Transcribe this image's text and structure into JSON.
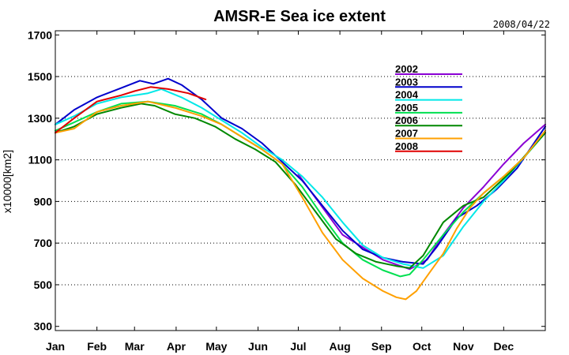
{
  "chart_data": {
    "type": "line",
    "title": "AMSR-E Sea ice extent",
    "date": "2008/04/22",
    "xlabel": "",
    "ylabel": "x10000[km2]",
    "x_categories": [
      "Jan",
      "Feb",
      "Mar",
      "Apr",
      "May",
      "Jun",
      "Jul",
      "Aug",
      "Sep",
      "Oct",
      "Nov",
      "Dec"
    ],
    "x_range_days": [
      1,
      366
    ],
    "ylim": [
      280,
      1720
    ],
    "yticks": [
      300,
      500,
      700,
      900,
      1100,
      1300,
      1500,
      1700
    ],
    "grid": "horizontal dotted",
    "legend_position": "top-right",
    "series": [
      {
        "name": "2002",
        "color": "#8a00d4",
        "points": [
          [
            182,
            1030
          ],
          [
            215,
            740
          ],
          [
            245,
            620
          ],
          [
            265,
            575
          ],
          [
            278,
            620
          ],
          [
            290,
            740
          ],
          [
            305,
            870
          ],
          [
            320,
            970
          ],
          [
            335,
            1080
          ],
          [
            350,
            1180
          ],
          [
            366,
            1270
          ]
        ]
      },
      {
        "name": "2003",
        "color": "#0000cc",
        "points": [
          [
            1,
            1270
          ],
          [
            15,
            1340
          ],
          [
            32,
            1400
          ],
          [
            48,
            1440
          ],
          [
            64,
            1480
          ],
          [
            74,
            1465
          ],
          [
            85,
            1490
          ],
          [
            95,
            1460
          ],
          [
            110,
            1390
          ],
          [
            125,
            1300
          ],
          [
            140,
            1250
          ],
          [
            155,
            1180
          ],
          [
            170,
            1090
          ],
          [
            185,
            1000
          ],
          [
            200,
            880
          ],
          [
            215,
            760
          ],
          [
            230,
            670
          ],
          [
            245,
            630
          ],
          [
            260,
            610
          ],
          [
            275,
            600
          ],
          [
            285,
            680
          ],
          [
            300,
            820
          ],
          [
            315,
            880
          ],
          [
            330,
            960
          ],
          [
            345,
            1060
          ],
          [
            366,
            1260
          ]
        ]
      },
      {
        "name": "2004",
        "color": "#00e8e8",
        "points": [
          [
            1,
            1270
          ],
          [
            15,
            1310
          ],
          [
            32,
            1370
          ],
          [
            50,
            1400
          ],
          [
            70,
            1420
          ],
          [
            80,
            1440
          ],
          [
            95,
            1400
          ],
          [
            110,
            1350
          ],
          [
            125,
            1290
          ],
          [
            140,
            1230
          ],
          [
            155,
            1160
          ],
          [
            170,
            1100
          ],
          [
            185,
            1020
          ],
          [
            200,
            920
          ],
          [
            215,
            800
          ],
          [
            230,
            690
          ],
          [
            245,
            630
          ],
          [
            260,
            600
          ],
          [
            275,
            580
          ],
          [
            290,
            640
          ],
          [
            305,
            780
          ],
          [
            320,
            900
          ],
          [
            335,
            1000
          ],
          [
            350,
            1110
          ],
          [
            366,
            1230
          ]
        ]
      },
      {
        "name": "2005",
        "color": "#00e050",
        "points": [
          [
            1,
            1240
          ],
          [
            15,
            1280
          ],
          [
            32,
            1330
          ],
          [
            50,
            1370
          ],
          [
            70,
            1380
          ],
          [
            90,
            1360
          ],
          [
            110,
            1320
          ],
          [
            125,
            1270
          ],
          [
            140,
            1210
          ],
          [
            155,
            1150
          ],
          [
            170,
            1080
          ],
          [
            185,
            970
          ],
          [
            200,
            830
          ],
          [
            215,
            700
          ],
          [
            230,
            620
          ],
          [
            245,
            570
          ],
          [
            258,
            540
          ],
          [
            265,
            550
          ],
          [
            275,
            620
          ],
          [
            290,
            740
          ],
          [
            305,
            850
          ],
          [
            320,
            940
          ],
          [
            335,
            1020
          ],
          [
            350,
            1110
          ],
          [
            366,
            1230
          ]
        ]
      },
      {
        "name": "2006",
        "color": "#008800",
        "points": [
          [
            1,
            1230
          ],
          [
            15,
            1260
          ],
          [
            32,
            1320
          ],
          [
            50,
            1350
          ],
          [
            65,
            1370
          ],
          [
            75,
            1360
          ],
          [
            90,
            1320
          ],
          [
            105,
            1300
          ],
          [
            120,
            1260
          ],
          [
            135,
            1200
          ],
          [
            150,
            1150
          ],
          [
            165,
            1090
          ],
          [
            180,
            980
          ],
          [
            195,
            850
          ],
          [
            210,
            720
          ],
          [
            225,
            650
          ],
          [
            240,
            610
          ],
          [
            255,
            590
          ],
          [
            265,
            580
          ],
          [
            275,
            640
          ],
          [
            290,
            800
          ],
          [
            305,
            880
          ],
          [
            320,
            920
          ],
          [
            325,
            950
          ],
          [
            340,
            1040
          ],
          [
            355,
            1150
          ],
          [
            366,
            1230
          ]
        ]
      },
      {
        "name": "2007",
        "color": "#ffa000",
        "points": [
          [
            1,
            1230
          ],
          [
            15,
            1250
          ],
          [
            32,
            1330
          ],
          [
            50,
            1360
          ],
          [
            70,
            1380
          ],
          [
            90,
            1350
          ],
          [
            110,
            1310
          ],
          [
            125,
            1270
          ],
          [
            140,
            1210
          ],
          [
            155,
            1150
          ],
          [
            170,
            1080
          ],
          [
            185,
            920
          ],
          [
            200,
            750
          ],
          [
            215,
            620
          ],
          [
            230,
            530
          ],
          [
            245,
            470
          ],
          [
            255,
            440
          ],
          [
            262,
            430
          ],
          [
            270,
            470
          ],
          [
            280,
            560
          ],
          [
            290,
            650
          ],
          [
            300,
            770
          ],
          [
            310,
            870
          ],
          [
            320,
            940
          ],
          [
            335,
            1020
          ],
          [
            350,
            1110
          ],
          [
            366,
            1240
          ]
        ]
      },
      {
        "name": "2008",
        "color": "#e00000",
        "points": [
          [
            1,
            1230
          ],
          [
            15,
            1300
          ],
          [
            32,
            1380
          ],
          [
            50,
            1410
          ],
          [
            60,
            1430
          ],
          [
            72,
            1450
          ],
          [
            85,
            1440
          ],
          [
            100,
            1420
          ],
          [
            113,
            1390
          ]
        ]
      }
    ]
  }
}
